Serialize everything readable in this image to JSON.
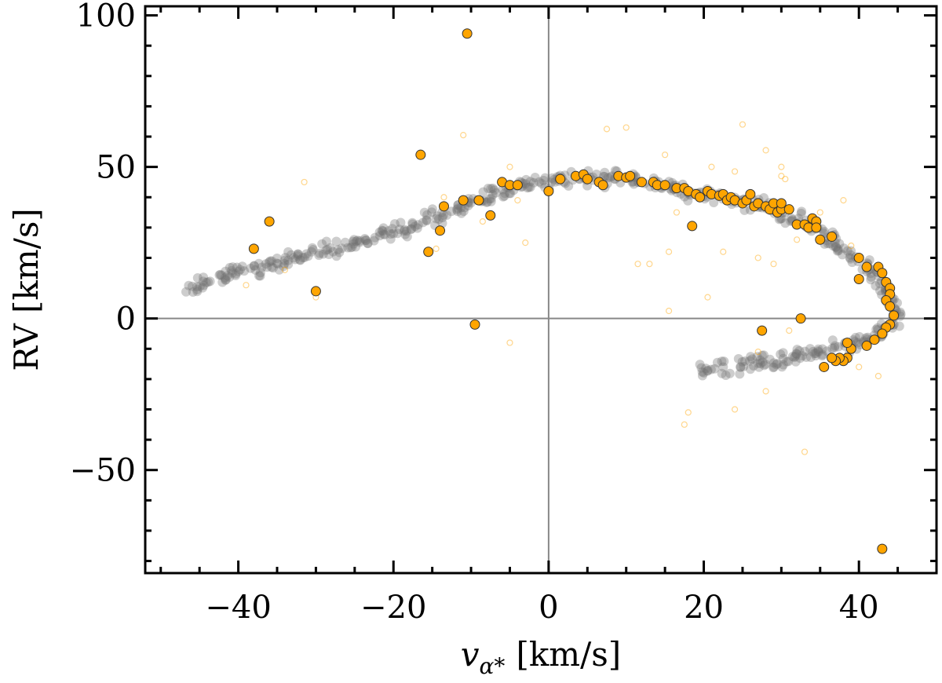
{
  "chart_data": {
    "type": "scatter",
    "title": "",
    "xlabel_var": "v",
    "xlabel_sub": "α*",
    "xlabel_unit": "[km/s]",
    "ylabel": "RV [km/s]",
    "xlim": [
      -52,
      50
    ],
    "ylim": [
      -84,
      103
    ],
    "x_ticks": [
      -40,
      -20,
      0,
      20,
      40
    ],
    "x_tick_labels": [
      "−40",
      "−20",
      "0",
      "20",
      "40"
    ],
    "y_ticks": [
      -50,
      0,
      50,
      100
    ],
    "y_tick_labels": [
      "−50",
      "0",
      "50",
      "100"
    ],
    "reference_lines": {
      "x": 0,
      "y": 0
    },
    "grid": false,
    "colors": {
      "model": "#6f6f6f",
      "members": "#ffa500",
      "member_edge": "#333333",
      "reference": "#888888"
    },
    "model_track": {
      "description_points": [
        [
          -47,
          10
        ],
        [
          -39,
          16
        ],
        [
          -34,
          19
        ],
        [
          -28,
          23
        ],
        [
          -24,
          25
        ],
        [
          -18,
          30
        ],
        [
          -14,
          34
        ],
        [
          -10,
          38
        ],
        [
          -6,
          42
        ],
        [
          -3,
          44
        ],
        [
          0,
          45
        ],
        [
          3,
          46
        ],
        [
          8,
          46.5
        ],
        [
          12,
          45
        ],
        [
          16,
          43
        ],
        [
          20,
          41
        ],
        [
          24,
          39
        ],
        [
          28,
          37
        ],
        [
          31,
          34
        ],
        [
          34,
          30
        ],
        [
          37,
          25
        ],
        [
          40,
          19
        ],
        [
          42,
          14
        ],
        [
          43.5,
          9
        ],
        [
          44.5,
          4
        ],
        [
          45,
          0
        ],
        [
          44,
          -3
        ],
        [
          42,
          -6
        ],
        [
          40,
          -8
        ],
        [
          37,
          -10
        ],
        [
          33,
          -12
        ],
        [
          28,
          -14
        ],
        [
          23,
          -16
        ],
        [
          19.5,
          -17
        ]
      ]
    },
    "series": [
      {
        "name": "members",
        "points": [
          [
            -10.5,
            94
          ],
          [
            -16.5,
            54
          ],
          [
            -36,
            32
          ],
          [
            -38,
            23
          ],
          [
            -30,
            9
          ],
          [
            -15.5,
            22
          ],
          [
            -14,
            29
          ],
          [
            -13.5,
            37
          ],
          [
            -11,
            39
          ],
          [
            -9,
            39
          ],
          [
            -7.5,
            34
          ],
          [
            -9.5,
            -2
          ],
          [
            -6,
            45
          ],
          [
            -5,
            44
          ],
          [
            -4,
            44
          ],
          [
            0,
            42
          ],
          [
            1.5,
            46
          ],
          [
            3.5,
            47
          ],
          [
            4.5,
            47.5
          ],
          [
            5,
            46
          ],
          [
            6.5,
            45
          ],
          [
            7,
            44
          ],
          [
            9,
            47
          ],
          [
            10,
            46.5
          ],
          [
            10.5,
            47
          ],
          [
            12,
            45
          ],
          [
            13.5,
            45
          ],
          [
            14,
            44
          ],
          [
            15,
            44
          ],
          [
            16.5,
            43
          ],
          [
            17.5,
            43
          ],
          [
            18,
            42
          ],
          [
            19,
            41
          ],
          [
            19.5,
            40
          ],
          [
            20.5,
            42
          ],
          [
            21,
            41
          ],
          [
            22,
            40.5
          ],
          [
            22.5,
            41
          ],
          [
            23,
            39
          ],
          [
            23.5,
            40
          ],
          [
            24,
            39
          ],
          [
            25,
            38
          ],
          [
            25.5,
            39
          ],
          [
            26,
            41
          ],
          [
            26.5,
            37
          ],
          [
            27,
            38
          ],
          [
            28,
            37
          ],
          [
            28.5,
            36
          ],
          [
            29,
            38
          ],
          [
            29.5,
            35
          ],
          [
            30,
            36
          ],
          [
            30,
            38
          ],
          [
            31,
            36
          ],
          [
            32,
            31
          ],
          [
            33,
            31
          ],
          [
            33.5,
            30
          ],
          [
            34,
            33
          ],
          [
            34.5,
            32
          ],
          [
            34.5,
            30
          ],
          [
            35,
            26
          ],
          [
            36.5,
            27
          ],
          [
            40,
            20
          ],
          [
            41,
            17
          ],
          [
            42.5,
            17
          ],
          [
            43,
            15
          ],
          [
            43.5,
            12
          ],
          [
            44,
            10
          ],
          [
            44,
            8
          ],
          [
            43.5,
            6
          ],
          [
            44,
            4
          ],
          [
            44.5,
            1
          ],
          [
            44,
            -2
          ],
          [
            43.5,
            -3
          ],
          [
            43,
            -5
          ],
          [
            42,
            -7
          ],
          [
            41,
            -9
          ],
          [
            40,
            13
          ],
          [
            39,
            -10
          ],
          [
            38.5,
            -13
          ],
          [
            38,
            -14
          ],
          [
            37.5,
            -13
          ],
          [
            37,
            -14
          ],
          [
            36.5,
            -13
          ],
          [
            35.5,
            -16
          ],
          [
            38.5,
            -8
          ],
          [
            18.5,
            30.5
          ],
          [
            27.5,
            -4
          ],
          [
            32.5,
            0
          ],
          [
            43,
            -76
          ]
        ]
      },
      {
        "name": "non-members",
        "points": [
          [
            -31.5,
            45
          ],
          [
            -13.5,
            40
          ],
          [
            -11,
            60.5
          ],
          [
            -8.5,
            32
          ],
          [
            -5,
            50
          ],
          [
            -4,
            39
          ],
          [
            -3,
            25
          ],
          [
            -5,
            -8
          ],
          [
            -14.5,
            23
          ],
          [
            -30,
            7
          ],
          [
            -39,
            11
          ],
          [
            -34,
            16
          ],
          [
            7.5,
            62.5
          ],
          [
            10,
            63
          ],
          [
            11.5,
            18
          ],
          [
            13,
            18
          ],
          [
            15,
            54
          ],
          [
            15.5,
            22
          ],
          [
            15.5,
            2.5
          ],
          [
            17.5,
            -35
          ],
          [
            18,
            -31
          ],
          [
            20.5,
            7
          ],
          [
            21,
            50
          ],
          [
            22.5,
            22
          ],
          [
            24,
            48.5
          ],
          [
            24,
            -30
          ],
          [
            25,
            64
          ],
          [
            27,
            20
          ],
          [
            28,
            55.5
          ],
          [
            28,
            -24
          ],
          [
            29,
            18
          ],
          [
            30,
            50
          ],
          [
            30.5,
            46
          ],
          [
            31,
            -4
          ],
          [
            32,
            26
          ],
          [
            33,
            -44
          ],
          [
            35,
            35
          ],
          [
            38,
            39
          ],
          [
            39,
            24
          ],
          [
            40,
            -16
          ],
          [
            42.5,
            -19
          ],
          [
            27,
            -11
          ],
          [
            30,
            47
          ],
          [
            16.5,
            35
          ]
        ]
      }
    ]
  }
}
